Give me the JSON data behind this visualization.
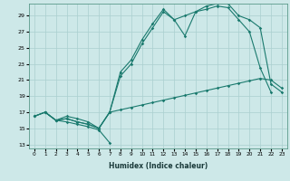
{
  "xlabel": "Humidex (Indice chaleur)",
  "bg_color": "#cde8e8",
  "line_color": "#1a7a6e",
  "grid_color": "#aacfcf",
  "xlim": [
    -0.5,
    23.5
  ],
  "ylim": [
    12.5,
    30.5
  ],
  "xticks": [
    0,
    1,
    2,
    3,
    4,
    5,
    6,
    7,
    8,
    9,
    10,
    11,
    12,
    13,
    14,
    15,
    16,
    17,
    18,
    19,
    20,
    21,
    22,
    23
  ],
  "yticks": [
    13,
    15,
    17,
    19,
    21,
    23,
    25,
    27,
    29
  ],
  "line1_x": [
    0,
    1,
    2,
    3,
    4,
    5,
    6,
    7
  ],
  "line1_y": [
    16.5,
    17.0,
    16.0,
    15.8,
    15.5,
    15.2,
    14.8,
    13.2
  ],
  "line2_x": [
    0,
    1,
    2,
    3,
    4,
    5,
    6,
    7,
    8,
    9,
    10,
    11,
    12,
    13,
    14,
    15,
    16,
    17,
    18,
    19,
    20,
    21,
    22,
    23
  ],
  "line2_y": [
    16.5,
    17.0,
    16.0,
    16.2,
    15.8,
    15.5,
    15.0,
    17.0,
    17.3,
    17.6,
    17.9,
    18.2,
    18.5,
    18.8,
    19.1,
    19.4,
    19.7,
    20.0,
    20.3,
    20.6,
    20.9,
    21.2,
    21.0,
    20.0
  ],
  "line3_x": [
    0,
    1,
    2,
    3,
    4,
    5,
    6,
    7,
    8,
    9,
    10,
    11,
    12,
    13,
    14,
    15,
    16,
    17,
    18,
    19,
    20,
    21,
    22
  ],
  "line3_y": [
    16.5,
    17.0,
    16.0,
    16.2,
    15.8,
    15.5,
    15.0,
    17.0,
    21.5,
    23.0,
    25.5,
    27.5,
    29.5,
    28.5,
    26.5,
    29.5,
    29.8,
    30.2,
    30.0,
    28.5,
    27.0,
    22.5,
    19.5
  ],
  "line4_x": [
    1,
    2,
    3,
    4,
    5,
    6,
    7,
    8,
    9,
    10,
    11,
    12,
    13,
    14,
    15,
    16,
    17,
    18,
    19,
    20,
    21,
    22,
    23
  ],
  "line4_y": [
    17.0,
    16.0,
    16.5,
    16.2,
    15.8,
    15.0,
    17.0,
    22.0,
    23.5,
    26.0,
    28.0,
    29.8,
    28.5,
    29.0,
    29.5,
    30.2,
    30.5,
    30.5,
    29.0,
    28.5,
    27.5,
    20.5,
    19.5
  ]
}
